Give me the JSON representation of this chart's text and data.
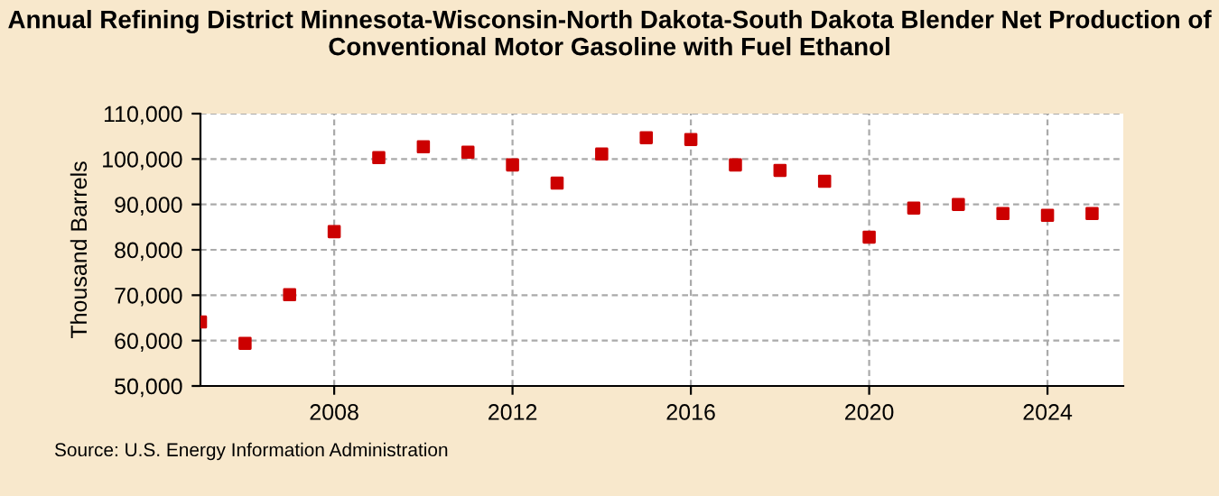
{
  "chart_data": {
    "type": "scatter",
    "title": "Annual Refining District Minnesota-Wisconsin-North Dakota-South Dakota Blender Net Production of Conventional Motor Gasoline with Fuel Ethanol",
    "ylabel": "Thousand Barrels",
    "x": [
      2005,
      2006,
      2007,
      2008,
      2009,
      2010,
      2011,
      2012,
      2013,
      2014,
      2015,
      2016,
      2017,
      2018,
      2019,
      2020,
      2021,
      2022,
      2023,
      2024,
      2025
    ],
    "series": [
      {
        "color": "#cc0000",
        "values": [
          64100,
          59400,
          70100,
          84000,
          100300,
          102700,
          101500,
          98700,
          94700,
          101100,
          104700,
          104300,
          98700,
          97500,
          95100,
          82800,
          89200,
          90000,
          88000,
          87600,
          88000
        ]
      }
    ],
    "xlim": [
      2005,
      2025.7
    ],
    "xticks": [
      2008,
      2012,
      2016,
      2020,
      2024
    ],
    "ylim": [
      50000,
      110000
    ],
    "yticks": [
      {
        "value": 50000,
        "label": "50,000"
      },
      {
        "value": 60000,
        "label": "60,000"
      },
      {
        "value": 70000,
        "label": "70,000"
      },
      {
        "value": 80000,
        "label": "80,000"
      },
      {
        "value": 90000,
        "label": "90,000"
      },
      {
        "value": 100000,
        "label": "100,000"
      },
      {
        "value": 110000,
        "label": "110,000"
      }
    ],
    "grid": true,
    "marker": "square",
    "legend": false,
    "annotations": [
      "Source: U.S. Energy Information Administration"
    ]
  }
}
